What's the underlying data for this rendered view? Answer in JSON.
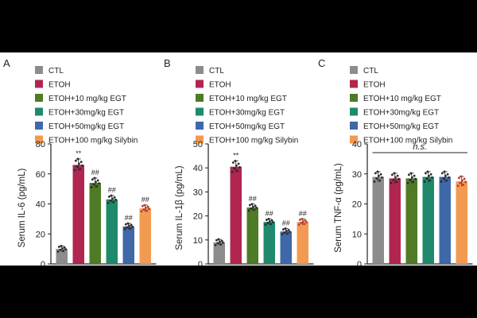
{
  "chart_data": [
    {
      "panel": "A",
      "type": "bar",
      "categories": [
        "CTL",
        "ETOH",
        "ETOH+10 mg/kg EGT",
        "ETOH+30mg/kg EGT",
        "ETOH+50mg/kg EGT",
        "ETOH+100 mg/kg Silybin"
      ],
      "values": [
        10,
        66,
        54,
        43,
        25,
        37
      ],
      "ylabel": "Serum IL-6 (pg/mL)",
      "ylim": [
        0,
        80
      ],
      "yticks": [
        "0",
        "20",
        "40",
        "60",
        "80"
      ],
      "annotations": [
        "",
        "**",
        "##",
        "##",
        "##",
        "##"
      ]
    },
    {
      "panel": "B",
      "type": "bar",
      "categories": [
        "CTL",
        "ETOH",
        "ETOH+10 mg/kg EGT",
        "ETOH+30mg/kg EGT",
        "ETOH+50mg/kg EGT",
        "ETOH+100 mg/kg Silybin"
      ],
      "values": [
        9,
        40.5,
        23.5,
        17.5,
        13.5,
        17.5
      ],
      "ylabel": "Serum IL-1β (pg/mL)",
      "ylim": [
        0,
        50
      ],
      "yticks": [
        "0",
        "10",
        "20",
        "30",
        "40",
        "50"
      ],
      "annotations": [
        "",
        "**",
        "##",
        "##",
        "##",
        "##"
      ]
    },
    {
      "panel": "C",
      "type": "bar",
      "categories": [
        "CTL",
        "ETOH",
        "ETOH+10 mg/kg EGT",
        "ETOH+30mg/kg EGT",
        "ETOH+50mg/kg EGT",
        "ETOH+100 mg/kg Silybin"
      ],
      "values": [
        29,
        28.5,
        28.5,
        29,
        29,
        27.5
      ],
      "ylabel": "Serum TNF-α (pg/mL)",
      "ylim": [
        0,
        40
      ],
      "yticks": [
        "0",
        "10",
        "20",
        "30",
        "40"
      ],
      "annotations": [],
      "significance": "n.s."
    }
  ],
  "legend": {
    "labels": [
      "CTL",
      "ETOH",
      "ETOH+10 mg/kg EGT",
      "ETOH+30mg/kg EGT",
      "ETOH+50mg/kg EGT",
      "ETOH+100 mg/kg Silybin"
    ],
    "colors": [
      "#8c8c8c",
      "#b0264f",
      "#4f7a26",
      "#1f8a6b",
      "#3f68a8",
      "#f39a52"
    ]
  },
  "colors": {
    "point": "#2b2b2b",
    "axis": "#222222"
  }
}
